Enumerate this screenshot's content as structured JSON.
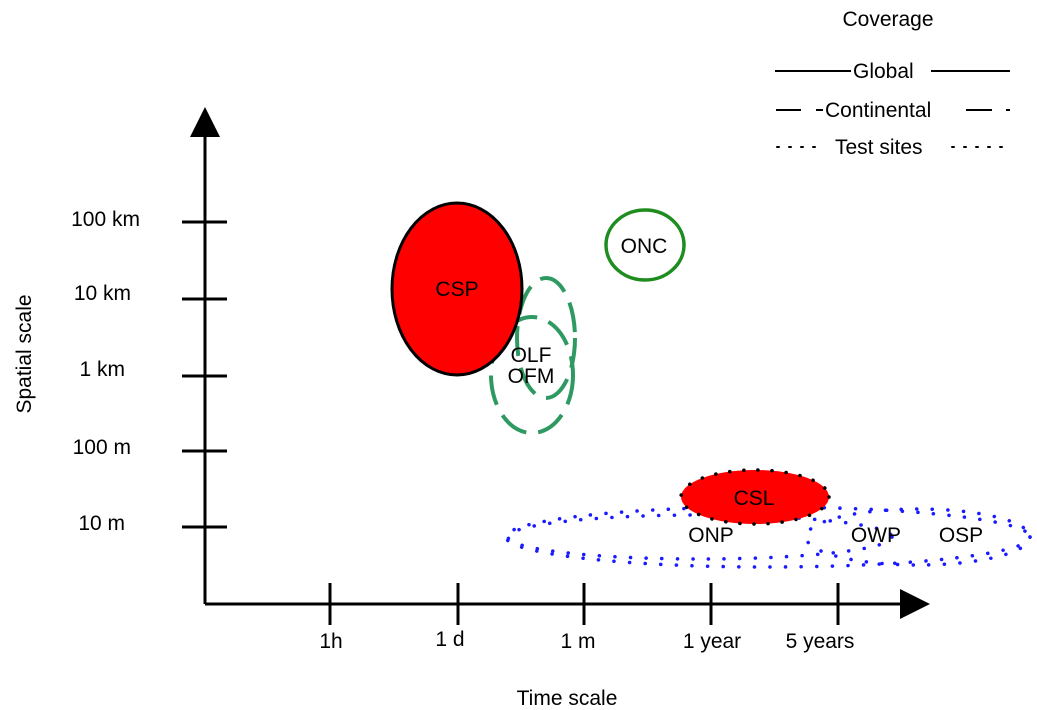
{
  "axes": {
    "x_title": "Time scale",
    "y_title": "Spatial scale",
    "x_ticks": [
      "1h",
      "1 d",
      "1 m",
      "1 year",
      "5 years"
    ],
    "y_ticks": [
      "100 km",
      "10 km",
      "1 km",
      "100 m",
      "10 m"
    ]
  },
  "legend": {
    "title": "Coverage",
    "items": [
      {
        "label": "Global",
        "style": "solid"
      },
      {
        "label": "Continental",
        "style": "dashed"
      },
      {
        "label": "Test sites",
        "style": "dotted"
      }
    ]
  },
  "products": [
    {
      "label": "CSP",
      "coverage": "global",
      "fill": "#ff0000",
      "stroke": "#000000"
    },
    {
      "label": "ONC",
      "coverage": "global",
      "fill": "none",
      "stroke": "#1e8c1e"
    },
    {
      "label": "OLF",
      "coverage": "continental",
      "fill": "none",
      "stroke": "#2e9a62"
    },
    {
      "label": "OFM",
      "coverage": "continental",
      "fill": "none",
      "stroke": "#2e9a62"
    },
    {
      "label": "CSL",
      "coverage": "test sites",
      "fill": "#ff0000",
      "stroke": "#000000"
    },
    {
      "label": "ONP",
      "coverage": "test sites",
      "fill": "none",
      "stroke": "#1a1aff"
    },
    {
      "label": "OWP",
      "coverage": "test sites",
      "fill": "none",
      "stroke": "#1a1aff"
    },
    {
      "label": "OSP",
      "coverage": "test sites",
      "fill": "none",
      "stroke": "#1a1aff"
    }
  ]
}
